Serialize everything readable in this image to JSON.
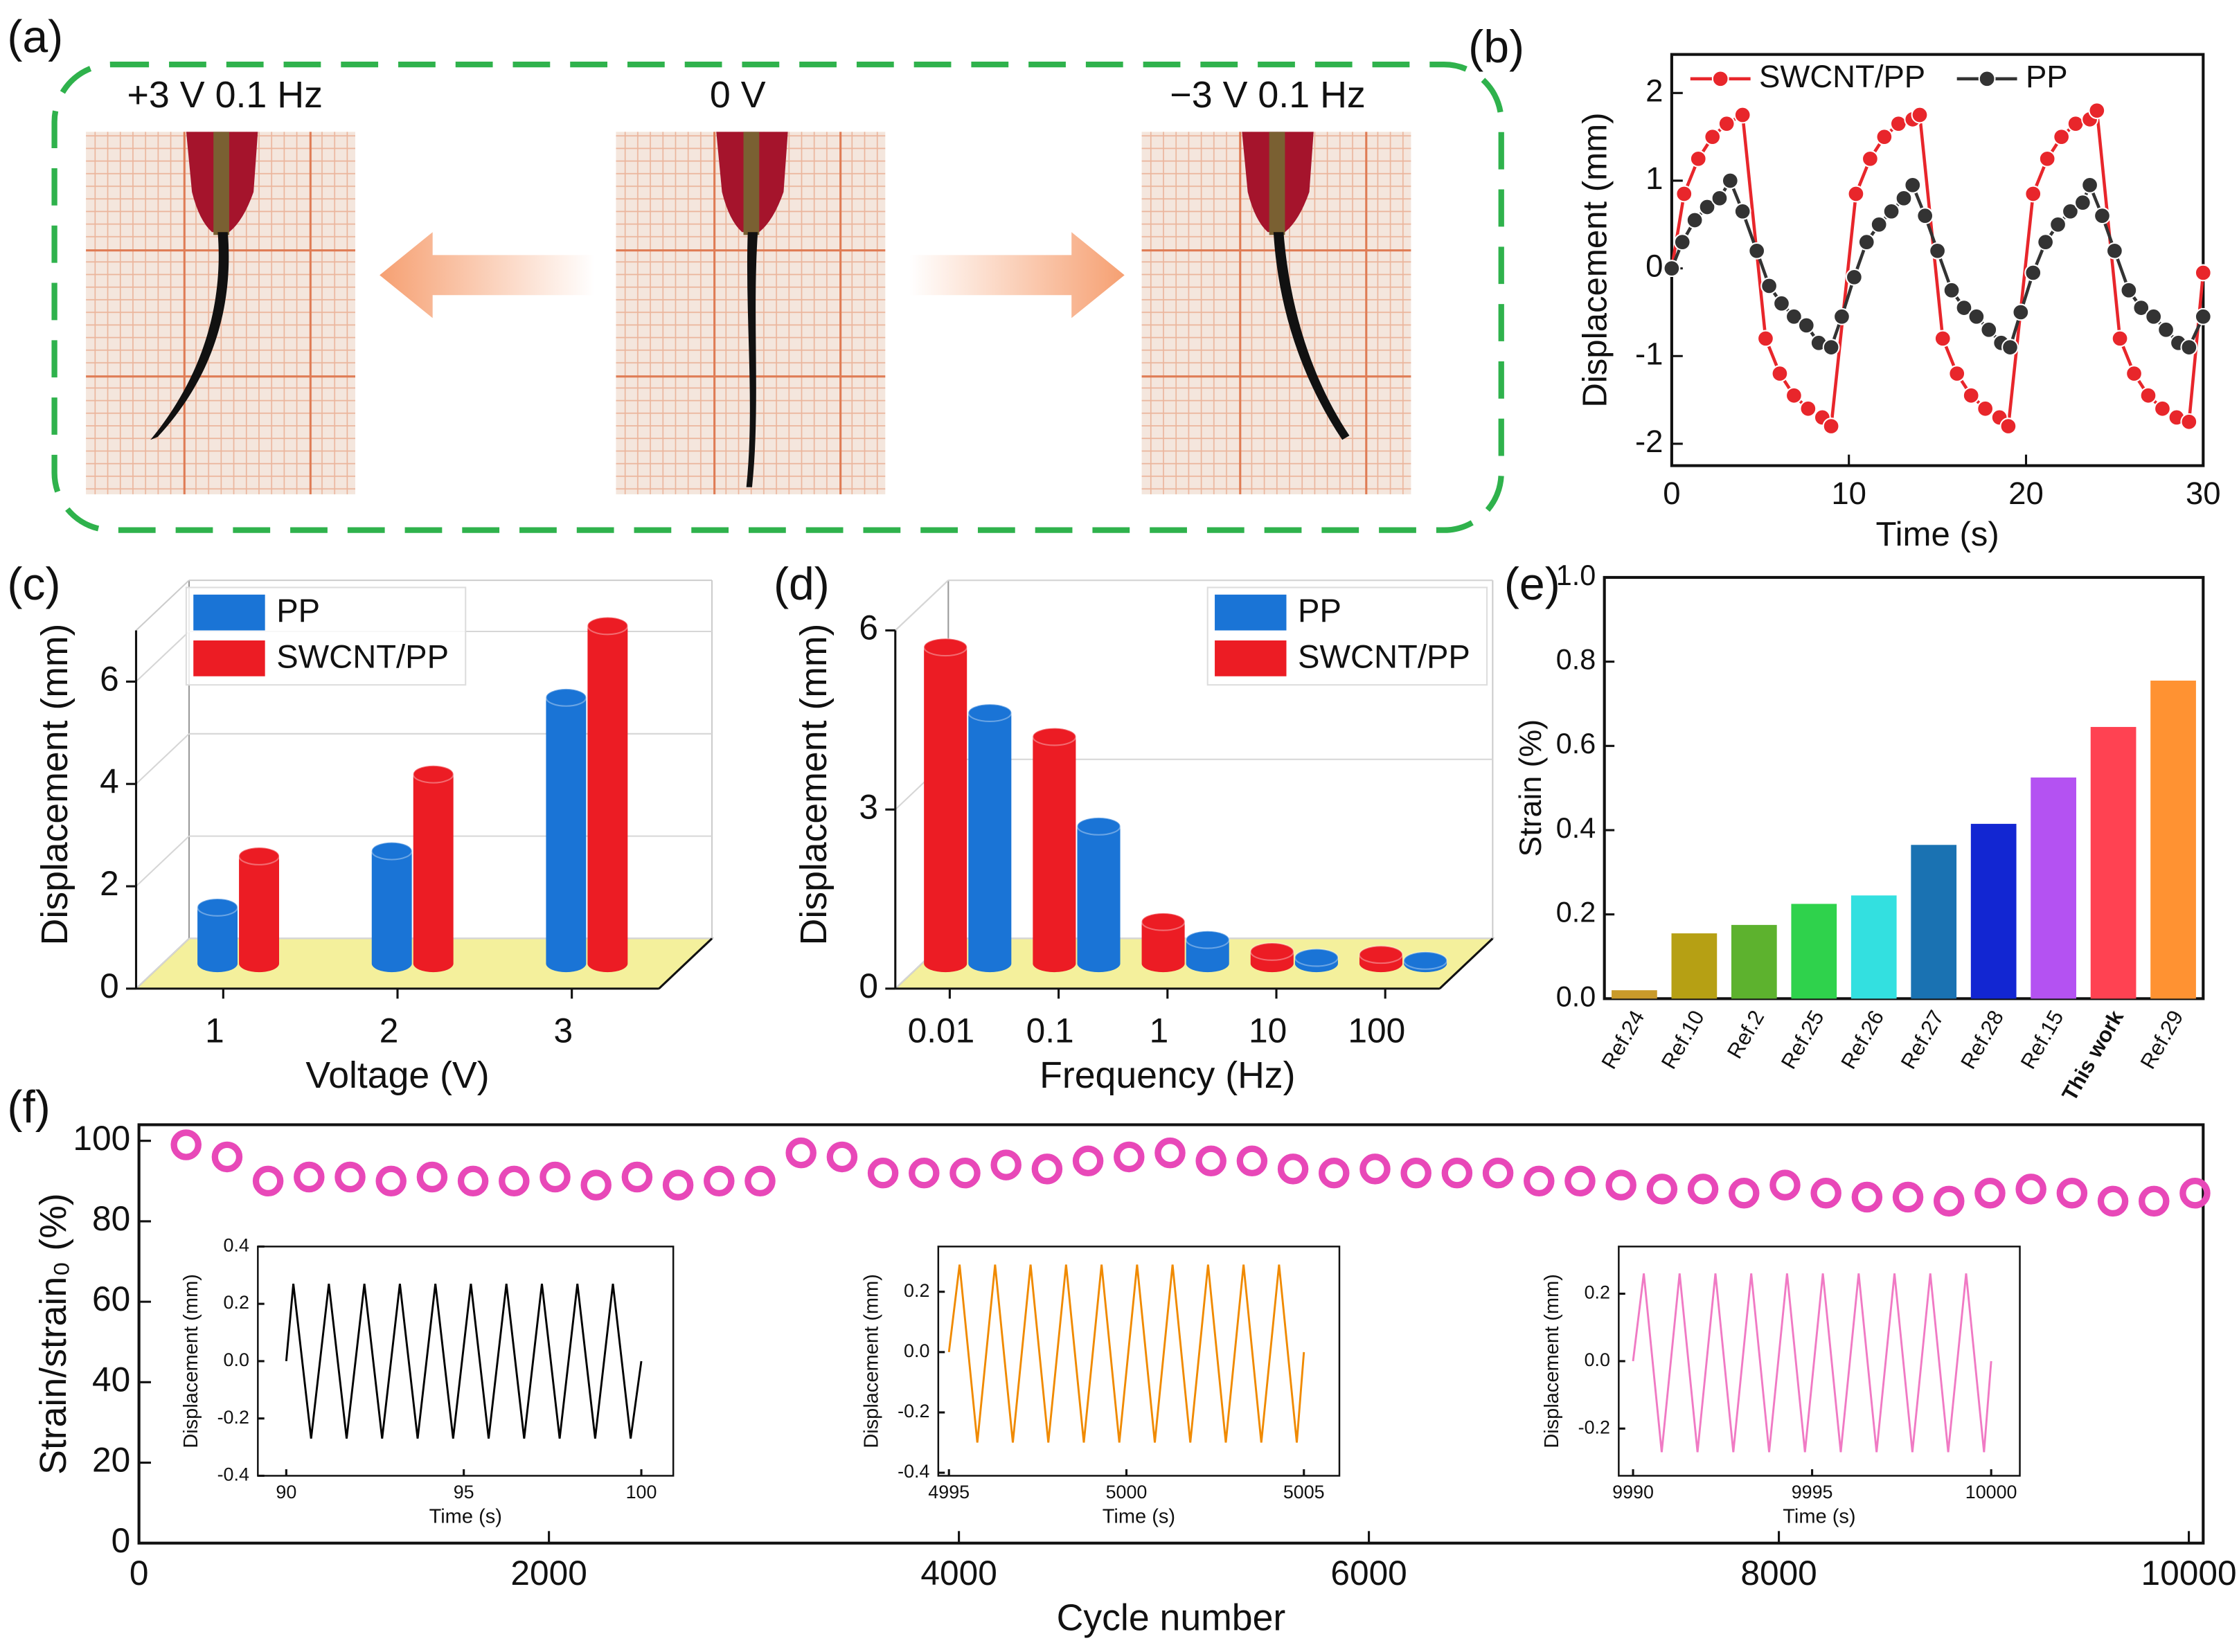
{
  "panel_a": {
    "panel": "(a)",
    "captions": [
      "+3 V 0.1 Hz",
      "0 V",
      "−3 V 0.1 Hz"
    ]
  },
  "chart_data": [
    {
      "type": "line",
      "panel": "(b)",
      "x_label": "Time (s)",
      "y_label": "Displacement (mm)",
      "markers": true,
      "xlim": [
        0,
        30
      ],
      "xticks": [
        0,
        10,
        20,
        30
      ],
      "ylim": [
        -2.25,
        2.44
      ],
      "yticks": [
        -2,
        -1,
        0,
        1,
        2
      ],
      "series": [
        {
          "name": "SWCNT/PP",
          "color": "#e8262b",
          "x": [
            0,
            0.7,
            1.5,
            2.3,
            3.1,
            4,
            5.3,
            6.1,
            6.9,
            7.7,
            8.5,
            9,
            10.4,
            11.2,
            12,
            12.8,
            13.6,
            14,
            15.3,
            16.1,
            16.9,
            17.7,
            18.5,
            19,
            20.4,
            21.2,
            22,
            22.8,
            23.6,
            24,
            25.3,
            26.1,
            26.9,
            27.7,
            28.5,
            29.2,
            30
          ],
          "values": [
            0,
            0.85,
            1.25,
            1.5,
            1.65,
            1.75,
            -0.8,
            -1.2,
            -1.45,
            -1.6,
            -1.7,
            -1.8,
            0.85,
            1.25,
            1.5,
            1.65,
            1.7,
            1.75,
            -0.8,
            -1.2,
            -1.45,
            -1.6,
            -1.7,
            -1.8,
            0.85,
            1.25,
            1.5,
            1.65,
            1.7,
            1.8,
            -0.8,
            -1.2,
            -1.45,
            -1.6,
            -1.7,
            -1.75,
            -0.05
          ]
        },
        {
          "name": "PP",
          "color": "#333333",
          "x": [
            0,
            0.6,
            1.3,
            2,
            2.7,
            3.3,
            4,
            4.8,
            5.5,
            6.2,
            6.9,
            7.6,
            8.3,
            9,
            9.6,
            10.3,
            11,
            11.7,
            12.4,
            13.1,
            13.6,
            14.3,
            15,
            15.8,
            16.5,
            17.2,
            17.9,
            18.6,
            19.1,
            19.7,
            20.4,
            21.1,
            21.8,
            22.5,
            23.2,
            23.6,
            24.3,
            25,
            25.8,
            26.5,
            27.2,
            27.9,
            28.6,
            29.2,
            30
          ],
          "values": [
            0,
            0.3,
            0.55,
            0.7,
            0.8,
            1.0,
            0.65,
            0.2,
            -0.2,
            -0.4,
            -0.55,
            -0.65,
            -0.85,
            -0.9,
            -0.55,
            -0.1,
            0.3,
            0.5,
            0.65,
            0.8,
            0.95,
            0.6,
            0.2,
            -0.25,
            -0.45,
            -0.55,
            -0.7,
            -0.85,
            -0.9,
            -0.5,
            -0.05,
            0.3,
            0.5,
            0.65,
            0.75,
            0.95,
            0.6,
            0.2,
            -0.25,
            -0.45,
            -0.55,
            -0.7,
            -0.85,
            -0.9,
            -0.55
          ]
        }
      ]
    },
    {
      "type": "bar3d",
      "panel": "(c)",
      "x_label": "Voltage (V)",
      "y_label": "Displacement (mm)",
      "categories": [
        "1",
        "2",
        "3"
      ],
      "ylim": [
        0,
        7
      ],
      "yticks": [
        0,
        2,
        4,
        6
      ],
      "grid": true,
      "series": [
        {
          "name": "PP",
          "color": "#1a74d6",
          "values": [
            1.1,
            2.2,
            5.2
          ]
        },
        {
          "name": "SWCNT/PP",
          "color": "#ec1c24",
          "values": [
            2.1,
            3.7,
            6.6
          ]
        }
      ]
    },
    {
      "type": "bar3d",
      "panel": "(d)",
      "x_label": "Frequency (Hz)",
      "y_label": "Displacement (mm)",
      "categories": [
        "0.01",
        "0.1",
        "1",
        "10",
        "100"
      ],
      "ylim": [
        0,
        6
      ],
      "yticks": [
        0,
        3,
        6
      ],
      "grid": true,
      "series": [
        {
          "name": "PP",
          "color": "#1a74d6",
          "values": [
            4.2,
            2.3,
            0.4,
            0.1,
            0.05
          ]
        },
        {
          "name": "SWCNT/PP",
          "color": "#ec1c24",
          "values": [
            5.3,
            3.8,
            0.7,
            0.2,
            0.15
          ]
        }
      ]
    },
    {
      "type": "bar",
      "panel": "(e)",
      "y_label": "Strain (%)",
      "categories": [
        "Ref.24",
        "Ref.10",
        "Ref.2",
        "Ref.25",
        "Ref.26",
        "Ref.27",
        "Ref.28",
        "Ref.15",
        "This work",
        "Ref.29"
      ],
      "values": [
        0.02,
        0.155,
        0.175,
        0.225,
        0.245,
        0.365,
        0.415,
        0.525,
        0.645,
        0.755
      ],
      "colors": [
        "#c99a2a",
        "#b6a014",
        "#5db22e",
        "#2fd24c",
        "#33e0e0",
        "#1a72b2",
        "#1226d2",
        "#b452f2",
        "#ff4252",
        "#ff9232"
      ],
      "category_label_colors": [
        "#111111",
        "#111111",
        "#111111",
        "#111111",
        "#111111",
        "#111111",
        "#111111",
        "#111111",
        "#ff0000",
        "#111111"
      ],
      "ylim": [
        0,
        1
      ],
      "yticks": [
        {
          "value": 0,
          "label": "0.0"
        },
        0.2,
        0.4,
        0.6,
        0.8,
        {
          "value": 1,
          "label": "1.0"
        }
      ]
    },
    {
      "type": "scatter",
      "panel": "(f)",
      "x_label": "Cycle number",
      "y_label": "Strain/strain₀ (%)",
      "color": "#e848b8",
      "xlim": [
        0,
        10070
      ],
      "xticks": [
        0,
        2000,
        4000,
        6000,
        8000,
        10000
      ],
      "ylim": [
        0,
        104
      ],
      "yticks": [
        0,
        20,
        40,
        60,
        80,
        100
      ],
      "x": [
        230,
        430,
        630,
        830,
        1030,
        1230,
        1430,
        1630,
        1830,
        2030,
        2230,
        2430,
        2630,
        2830,
        3030,
        3230,
        3430,
        3630,
        3830,
        4030,
        4230,
        4430,
        4630,
        4830,
        5030,
        5230,
        5430,
        5630,
        5830,
        6030,
        6230,
        6430,
        6630,
        6830,
        7030,
        7230,
        7430,
        7630,
        7830,
        8030,
        8230,
        8430,
        8630,
        8830,
        9030,
        9230,
        9430,
        9630,
        9830,
        10030
      ],
      "values": [
        99,
        96,
        90,
        91,
        91,
        90,
        91,
        90,
        90,
        91,
        89,
        91,
        89,
        90,
        90,
        97,
        96,
        92,
        92,
        92,
        94,
        93,
        95,
        96,
        97,
        95,
        95,
        93,
        92,
        93,
        92,
        92,
        92,
        90,
        90,
        89,
        88,
        88,
        87,
        89,
        87,
        86,
        86,
        85,
        87,
        88,
        87,
        85,
        85,
        87
      ]
    },
    {
      "type": "line",
      "x_label": "Time (s)",
      "y_label": "Displacement (mm)",
      "xlim": [
        89.2,
        100.9
      ],
      "xticks": [
        90,
        95,
        100
      ],
      "ylim": [
        -0.4,
        0.4
      ],
      "yticks": [
        -0.4,
        -0.2,
        {
          "value": 0,
          "label": "0.0"
        },
        0.2,
        0.4
      ],
      "series": [
        {
          "color": "#000000",
          "x": [
            90,
            90.2,
            90.7,
            91.2,
            91.7,
            92.2,
            92.7,
            93.2,
            93.7,
            94.2,
            94.7,
            95.2,
            95.7,
            96.2,
            96.7,
            97.2,
            97.7,
            98.2,
            98.7,
            99.2,
            99.7,
            100
          ],
          "values": [
            0,
            0.27,
            -0.27,
            0.27,
            -0.27,
            0.27,
            -0.27,
            0.27,
            -0.27,
            0.27,
            -0.27,
            0.27,
            -0.27,
            0.27,
            -0.27,
            0.27,
            -0.27,
            0.27,
            -0.27,
            0.27,
            -0.27,
            0
          ]
        }
      ]
    },
    {
      "type": "line",
      "x_label": "Time (s)",
      "y_label": "Displacement (mm)",
      "xlim": [
        4994.7,
        5006
      ],
      "xticks": [
        4995,
        5000,
        5005
      ],
      "ylim": [
        -0.41,
        0.35
      ],
      "yticks": [
        -0.4,
        -0.2,
        {
          "value": 0,
          "label": "0.0"
        },
        0.2
      ],
      "series": [
        {
          "color": "#f08a00",
          "x": [
            4995,
            4995.3,
            4995.8,
            4996.3,
            4996.8,
            4997.3,
            4997.8,
            4998.3,
            4998.8,
            4999.3,
            4999.8,
            5000.3,
            5000.8,
            5001.3,
            5001.8,
            5002.3,
            5002.8,
            5003.3,
            5003.8,
            5004.3,
            5004.8,
            5005
          ],
          "values": [
            0,
            0.29,
            -0.3,
            0.29,
            -0.3,
            0.29,
            -0.3,
            0.29,
            -0.3,
            0.29,
            -0.3,
            0.29,
            -0.3,
            0.29,
            -0.3,
            0.29,
            -0.3,
            0.29,
            -0.3,
            0.29,
            -0.3,
            0
          ]
        }
      ]
    },
    {
      "type": "line",
      "x_label": "Time (s)",
      "y_label": "Displacement (mm)",
      "xlim": [
        9989.6,
        10000.8
      ],
      "xticks": [
        9990,
        9995,
        10000
      ],
      "ylim": [
        -0.34,
        0.34
      ],
      "yticks": [
        -0.2,
        {
          "value": 0,
          "label": "0.0"
        },
        0.2
      ],
      "series": [
        {
          "color": "#f07ac4",
          "x": [
            9990,
            9990.3,
            9990.8,
            9991.3,
            9991.8,
            9992.3,
            9992.8,
            9993.3,
            9993.8,
            9994.3,
            9994.8,
            9995.3,
            9995.8,
            9996.3,
            9996.8,
            9997.3,
            9997.8,
            9998.3,
            9998.8,
            9999.3,
            9999.8,
            10000
          ],
          "values": [
            0,
            0.26,
            -0.27,
            0.26,
            -0.27,
            0.26,
            -0.27,
            0.26,
            -0.27,
            0.26,
            -0.27,
            0.26,
            -0.27,
            0.26,
            -0.27,
            0.26,
            -0.27,
            0.26,
            -0.27,
            0.26,
            -0.27,
            0
          ]
        }
      ]
    }
  ]
}
